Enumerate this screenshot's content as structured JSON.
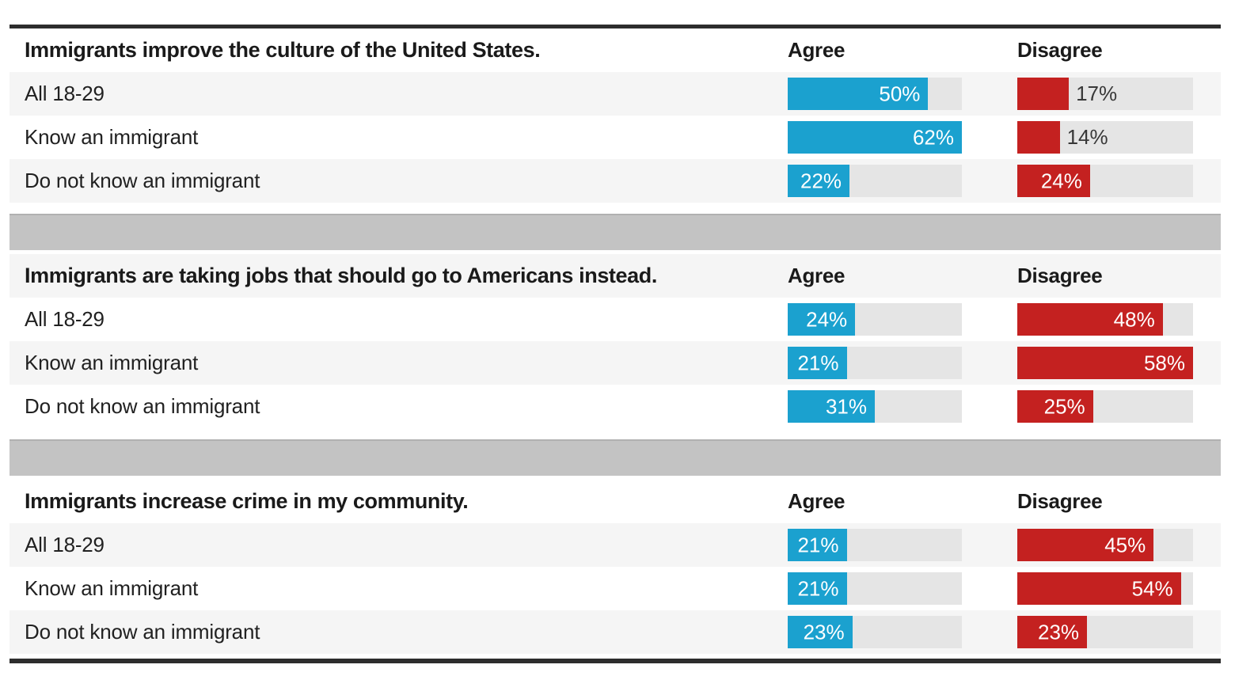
{
  "chart_data": {
    "type": "bar",
    "title": "",
    "unit": "percent",
    "columns": [
      "Agree",
      "Disagree"
    ],
    "legend_position": "column-headers",
    "grid": false,
    "bar_scale": {
      "agree_axis_max": 62,
      "disagree_axis_max": 58
    },
    "colors": {
      "agree_bar": "#1ba1cf",
      "disagree_bar": "#c42120",
      "bar_track": "#e5e5e5",
      "row_alt_background": "#f5f5f5",
      "section_separator": "#c3c3c3",
      "border_rule": "#2d2d2d",
      "label_inside": "#ffffff",
      "label_outside": "#383838",
      "text": "#1a1a1a"
    },
    "sections": [
      {
        "question": "Immigrants improve the culture of the United States.",
        "rows": [
          {
            "label": "All 18-29",
            "agree": 50,
            "agree_label": "50%",
            "agree_label_pos": "inside",
            "disagree": 17,
            "disagree_label": "17%",
            "disagree_label_pos": "outside"
          },
          {
            "label": "Know an immigrant",
            "agree": 62,
            "agree_label": "62%",
            "agree_label_pos": "inside",
            "disagree": 14,
            "disagree_label": "14%",
            "disagree_label_pos": "outside"
          },
          {
            "label": "Do not know an immigrant",
            "agree": 22,
            "agree_label": "22%",
            "agree_label_pos": "inside",
            "disagree": 24,
            "disagree_label": "24%",
            "disagree_label_pos": "inside"
          }
        ]
      },
      {
        "question": "Immigrants are taking jobs that should go to Americans instead.",
        "rows": [
          {
            "label": "All 18-29",
            "agree": 24,
            "agree_label": "24%",
            "agree_label_pos": "inside",
            "disagree": 48,
            "disagree_label": "48%",
            "disagree_label_pos": "inside"
          },
          {
            "label": "Know an immigrant",
            "agree": 21,
            "agree_label": "21%",
            "agree_label_pos": "inside",
            "disagree": 58,
            "disagree_label": "58%",
            "disagree_label_pos": "inside"
          },
          {
            "label": "Do not know an immigrant",
            "agree": 31,
            "agree_label": "31%",
            "agree_label_pos": "inside",
            "disagree": 25,
            "disagree_label": "25%",
            "disagree_label_pos": "inside"
          }
        ]
      },
      {
        "question": "Immigrants increase crime in my community.",
        "rows": [
          {
            "label": "All 18-29",
            "agree": 21,
            "agree_label": "21%",
            "agree_label_pos": "inside",
            "disagree": 45,
            "disagree_label": "45%",
            "disagree_label_pos": "inside"
          },
          {
            "label": "Know an immigrant",
            "agree": 21,
            "agree_label": "21%",
            "agree_label_pos": "inside",
            "disagree": 54,
            "disagree_label": "54%",
            "disagree_label_pos": "inside"
          },
          {
            "label": "Do not know an immigrant",
            "agree": 23,
            "agree_label": "23%",
            "agree_label_pos": "inside",
            "disagree": 23,
            "disagree_label": "23%",
            "disagree_label_pos": "inside"
          }
        ]
      }
    ]
  }
}
